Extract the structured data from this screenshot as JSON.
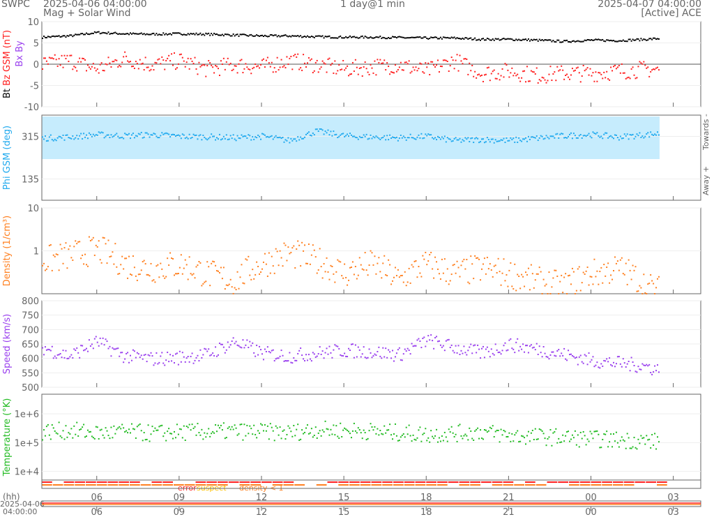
{
  "header": {
    "org": "SWPC",
    "start": "2025-04-06 04:00:00",
    "subtitle": "Mag + Solar Wind",
    "span": "1 day@1 min",
    "end": "2025-04-07 04:00:00",
    "source": "[Active] ACE"
  },
  "colors": {
    "bt": "#000000",
    "bz": "#ff2020",
    "phi": "#22aaee",
    "phi_band": "#c6ecfd",
    "density": "#ff8020",
    "speed": "#9a40ee",
    "temp": "#22bb22",
    "error": "#ff2020",
    "suspect": "#ffc000",
    "lowdens": "#ff8020"
  },
  "status_legend": {
    "error": "error",
    "suspect": "suspect",
    "density": "density < 1"
  },
  "axis_footer": {
    "hh": "(hh)",
    "date": "2025-04-06",
    "time": "04:00:00"
  },
  "side_labels": {
    "towards": "Towards -",
    "away": "Away +"
  },
  "chart_data": [
    {
      "type": "scatter",
      "ylabel": "Bt  Bz GSM (nT)",
      "legend_extra": [
        "Bx",
        "By"
      ],
      "ylim": [
        -10,
        10
      ],
      "yticks": [
        "10",
        "5",
        "0",
        "-5",
        "-10"
      ],
      "ytick_values": [
        10,
        5,
        0,
        -5,
        -10
      ],
      "x_hours_from_start": [
        0,
        1,
        2,
        3,
        4,
        5,
        6,
        7,
        8,
        9,
        10,
        11,
        12,
        13,
        14,
        15,
        16,
        17,
        18,
        19,
        20,
        21,
        22,
        22.5
      ],
      "series": [
        {
          "name": "Bt",
          "values": [
            6.5,
            6.8,
            7.6,
            7.3,
            7.2,
            7.3,
            7.2,
            7.0,
            6.8,
            6.8,
            6.6,
            6.5,
            6.5,
            6.4,
            6.3,
            6.3,
            6.0,
            6.0,
            5.8,
            5.5,
            5.8,
            5.7,
            6.0,
            6.2
          ]
        },
        {
          "name": "Bz GSM",
          "values": [
            0,
            1,
            -1,
            1.5,
            0,
            1,
            -1,
            0,
            -0.5,
            1,
            0,
            -1,
            -0.5,
            0,
            -1.5,
            1,
            -2,
            -1.5,
            -2.5,
            -2,
            -2,
            -1.5,
            -1,
            -1.2
          ]
        }
      ]
    },
    {
      "type": "scatter",
      "ylabel": "Phi GSM (deg)",
      "ylim": [
        45,
        405
      ],
      "yticks": [
        "315",
        "135"
      ],
      "ytick_values": [
        315,
        135
      ],
      "x_hours_from_start": [
        0,
        1,
        2,
        3,
        4,
        5,
        6,
        7,
        8,
        9,
        10,
        11,
        12,
        13,
        14,
        15,
        16,
        17,
        18,
        19,
        20,
        21,
        22,
        22.5
      ],
      "series": [
        {
          "name": "Phi GSM",
          "values": [
            310,
            315,
            325,
            320,
            325,
            318,
            316,
            312,
            318,
            300,
            340,
            320,
            315,
            312,
            318,
            300,
            305,
            300,
            310,
            320,
            325,
            315,
            325,
            330
          ]
        }
      ]
    },
    {
      "type": "scatter",
      "ylabel": "Density (1/cm³)",
      "yscale": "log",
      "ylim": [
        0.1,
        10
      ],
      "yticks": [
        "10",
        "1"
      ],
      "ytick_values": [
        10,
        1
      ],
      "x_hours_from_start": [
        0,
        1,
        2,
        3,
        4,
        5,
        6,
        7,
        8,
        9,
        10,
        11,
        12,
        13,
        14,
        15,
        16,
        17,
        18,
        19,
        20,
        21,
        22,
        22.5
      ],
      "series": [
        {
          "name": "Density",
          "values": [
            0.6,
            0.8,
            1.1,
            0.5,
            0.4,
            0.5,
            0.3,
            0.2,
            0.5,
            0.9,
            0.6,
            0.3,
            0.5,
            0.2,
            0.5,
            0.3,
            0.4,
            0.3,
            0.2,
            0.15,
            0.3,
            0.4,
            0.15,
            0.12
          ]
        }
      ]
    },
    {
      "type": "scatter",
      "ylabel": "Speed (km/s)",
      "ylim": [
        500,
        800
      ],
      "yticks": [
        "800",
        "750",
        "700",
        "650",
        "600",
        "550",
        "500"
      ],
      "ytick_values": [
        800,
        750,
        700,
        650,
        600,
        550,
        500
      ],
      "x_hours_from_start": [
        0,
        1,
        2,
        3,
        4,
        5,
        6,
        7,
        8,
        9,
        10,
        11,
        12,
        13,
        14,
        15,
        16,
        17,
        18,
        19,
        20,
        21,
        22,
        22.5
      ],
      "series": [
        {
          "name": "Speed",
          "values": [
            640,
            610,
            660,
            610,
            600,
            605,
            615,
            660,
            620,
            610,
            620,
            630,
            625,
            615,
            665,
            640,
            620,
            650,
            635,
            615,
            595,
            585,
            575,
            560
          ]
        }
      ]
    },
    {
      "type": "scatter",
      "ylabel": "Temperature (°K)",
      "yscale": "log",
      "ylim": [
        5000,
        4800000
      ],
      "yticks": [
        "1e+6",
        "1e+5",
        "1e+4"
      ],
      "ytick_values": [
        1000000,
        100000,
        10000
      ],
      "x_hours_from_start": [
        0,
        1,
        2,
        3,
        4,
        5,
        6,
        7,
        8,
        9,
        10,
        11,
        12,
        13,
        14,
        15,
        16,
        17,
        18,
        19,
        20,
        21,
        22,
        22.5
      ],
      "series": [
        {
          "name": "Temperature",
          "values": [
            250000,
            280000,
            220000,
            250000,
            220000,
            240000,
            250000,
            260000,
            250000,
            230000,
            300000,
            280000,
            260000,
            230000,
            200000,
            220000,
            250000,
            180000,
            170000,
            160000,
            140000,
            130000,
            120000,
            110000
          ]
        }
      ]
    }
  ],
  "xaxis": {
    "range_hours": [
      0,
      24
    ],
    "tick_labels": [
      "06",
      "09",
      "12",
      "15",
      "18",
      "21",
      "00",
      "03"
    ],
    "tick_hours": [
      2,
      5,
      8,
      11,
      14,
      17,
      20,
      23
    ]
  }
}
